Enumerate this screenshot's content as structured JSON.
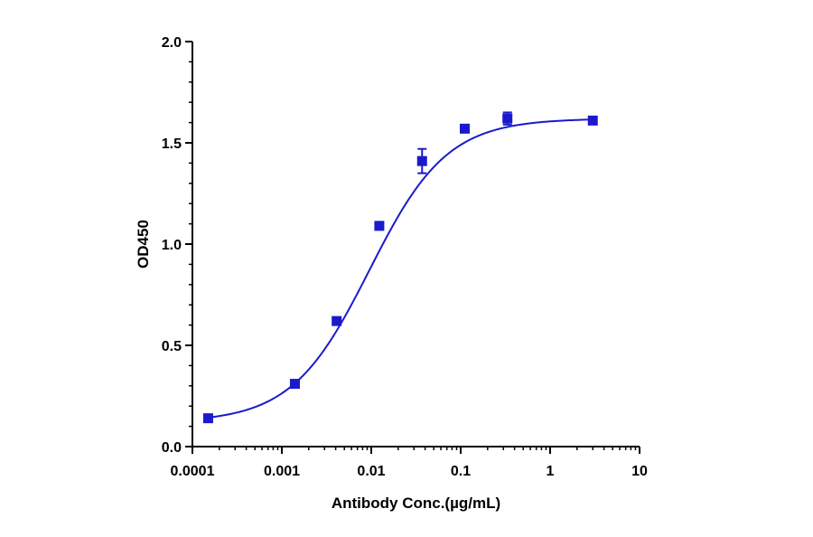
{
  "chart_data": {
    "type": "scatter",
    "title": "",
    "xlabel": "Antibody Conc.(µg/mL)",
    "ylabel": "OD450",
    "x_scale": "log",
    "xlim": [
      0.0001,
      10
    ],
    "ylim": [
      0,
      2.0
    ],
    "x_ticks": [
      "0.0001",
      "0.001",
      "0.01",
      "0.1",
      "1",
      "10"
    ],
    "y_ticks": [
      "0.0",
      "0.5",
      "1.0",
      "1.5",
      "2.0"
    ],
    "grid": false,
    "legend": "none",
    "color": "#1a1acc",
    "series": [
      {
        "points": [
          {
            "x": 0.00015,
            "y": 0.14,
            "err": 0.01
          },
          {
            "x": 0.0014,
            "y": 0.31,
            "err": 0.01
          },
          {
            "x": 0.0041,
            "y": 0.62,
            "err": 0.01
          },
          {
            "x": 0.0123,
            "y": 1.09,
            "err": 0.01
          },
          {
            "x": 0.037,
            "y": 1.41,
            "err": 0.06
          },
          {
            "x": 0.111,
            "y": 1.57,
            "err": 0.01
          },
          {
            "x": 0.333,
            "y": 1.62,
            "err": 0.03
          },
          {
            "x": 3.0,
            "y": 1.61,
            "err": 0.01
          }
        ],
        "fit": {
          "model": "4PL",
          "bottom": 0.12,
          "top": 1.62,
          "ec50": 0.0095,
          "hill": 1.0
        }
      }
    ]
  }
}
